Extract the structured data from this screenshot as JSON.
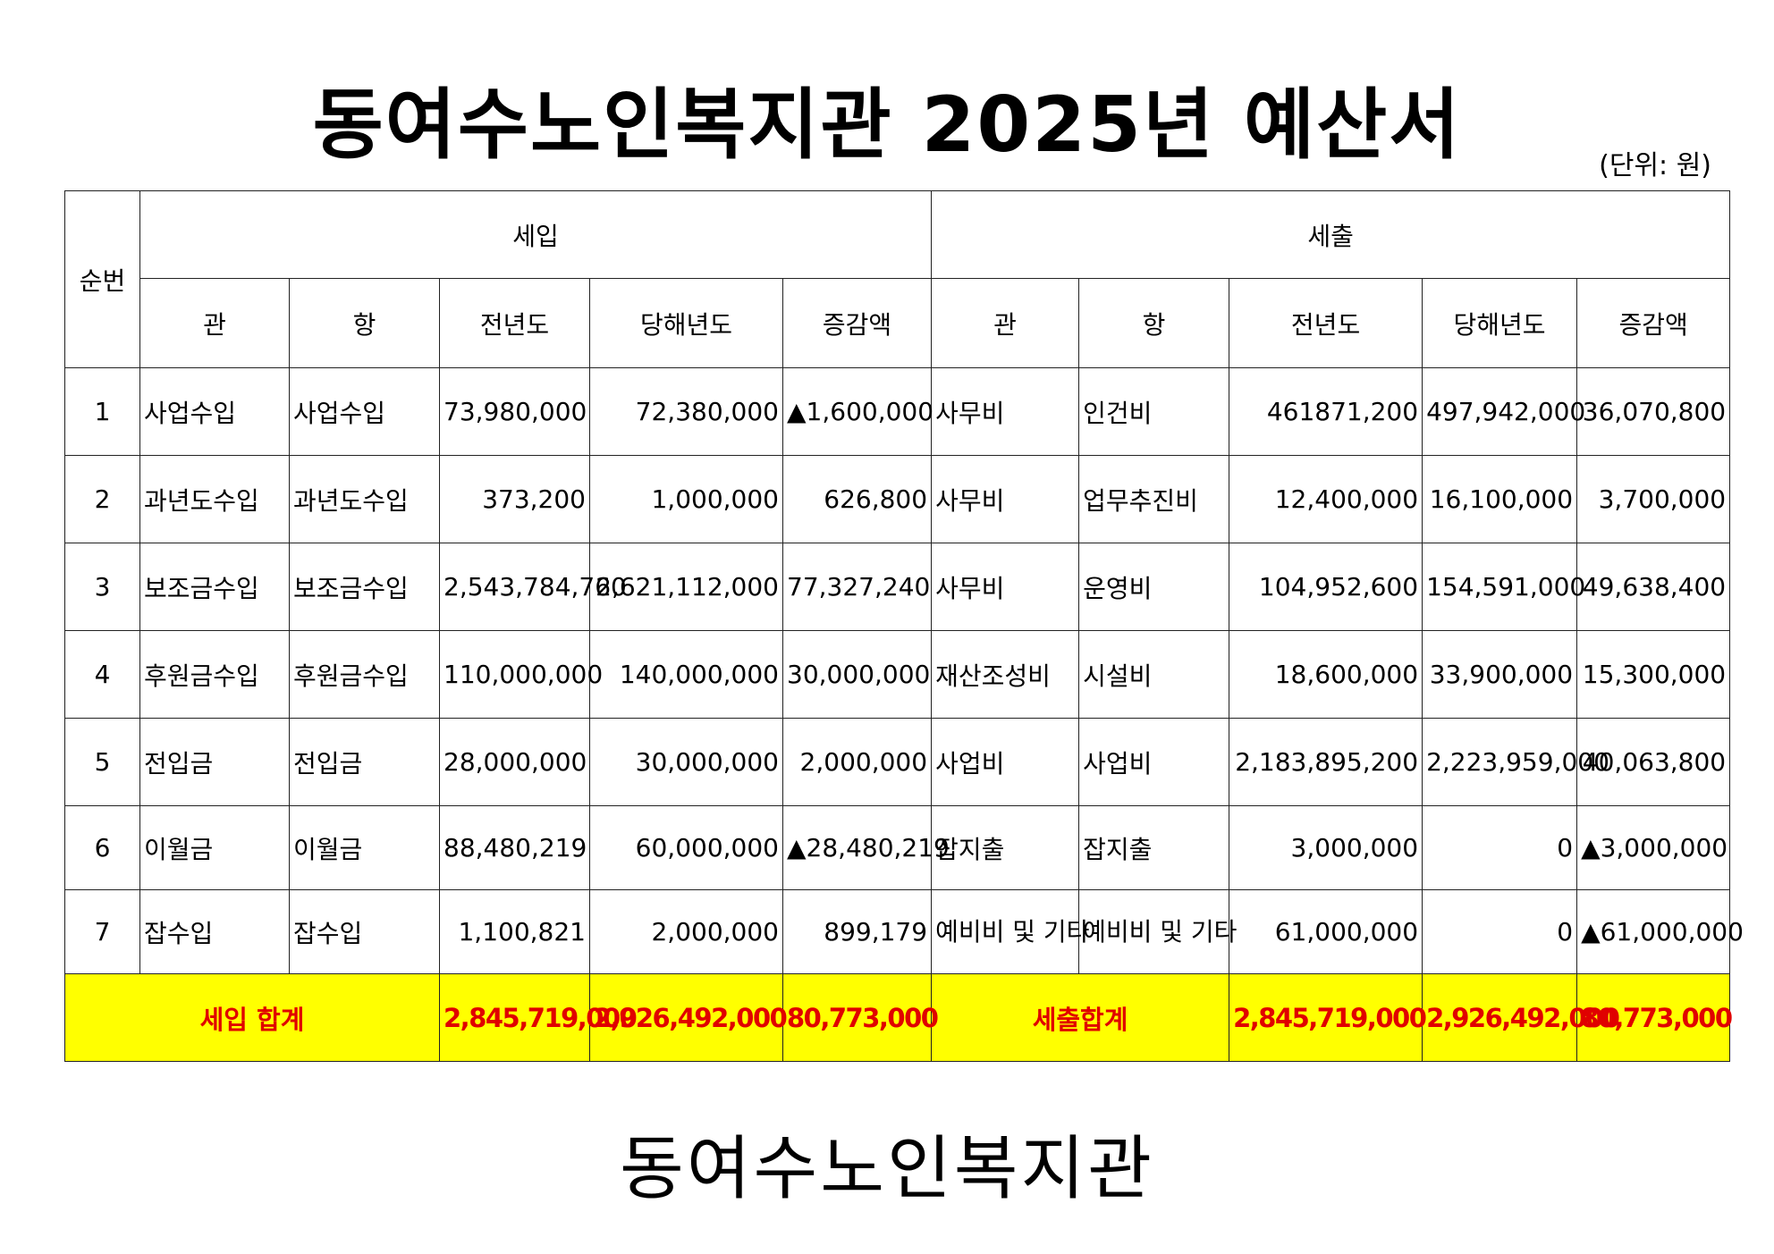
{
  "title": "동여수노인복지관 2025년 예산서",
  "unit": "(단위: 원)",
  "headers": {
    "seq": "순번",
    "revenue": "세입",
    "expense": "세출",
    "gwan": "관",
    "hang": "항",
    "prev": "전년도",
    "curr": "당해년도",
    "diff": "증감액"
  },
  "rows": [
    {
      "no": "1",
      "r_gwan": "사업수입",
      "r_hang": "사업수입",
      "r_prev": "73,980,000",
      "r_curr": "72,380,000",
      "r_diff": "▲1,600,000",
      "e_gwan": "사무비",
      "e_hang": "인건비",
      "e_prev": "461871,200",
      "e_curr": "497,942,000",
      "e_diff": "36,070,800"
    },
    {
      "no": "2",
      "r_gwan": "과년도수입",
      "r_hang": "과년도수입",
      "r_prev": "373,200",
      "r_curr": "1,000,000",
      "r_diff": "626,800",
      "e_gwan": "사무비",
      "e_hang": "업무추진비",
      "e_prev": "12,400,000",
      "e_curr": "16,100,000",
      "e_diff": "3,700,000"
    },
    {
      "no": "3",
      "r_gwan": "보조금수입",
      "r_hang": "보조금수입",
      "r_prev": "2,543,784,760",
      "r_curr": "2,621,112,000",
      "r_diff": "77,327,240",
      "e_gwan": "사무비",
      "e_hang": "운영비",
      "e_prev": "104,952,600",
      "e_curr": "154,591,000",
      "e_diff": "49,638,400"
    },
    {
      "no": "4",
      "r_gwan": "후원금수입",
      "r_hang": "후원금수입",
      "r_prev": "110,000,000",
      "r_curr": "140,000,000",
      "r_diff": "30,000,000",
      "e_gwan": "재산조성비",
      "e_hang": "시설비",
      "e_prev": "18,600,000",
      "e_curr": "33,900,000",
      "e_diff": "15,300,000"
    },
    {
      "no": "5",
      "r_gwan": "전입금",
      "r_hang": "전입금",
      "r_prev": "28,000,000",
      "r_curr": "30,000,000",
      "r_diff": "2,000,000",
      "e_gwan": "사업비",
      "e_hang": "사업비",
      "e_prev": "2,183,895,200",
      "e_curr": "2,223,959,000",
      "e_diff": "40,063,800"
    },
    {
      "no": "6",
      "r_gwan": "이월금",
      "r_hang": "이월금",
      "r_prev": "88,480,219",
      "r_curr": "60,000,000",
      "r_diff": "▲28,480,219",
      "e_gwan": "잡지출",
      "e_hang": "잡지출",
      "e_prev": "3,000,000",
      "e_curr": "0",
      "e_diff": "▲3,000,000"
    },
    {
      "no": "7",
      "r_gwan": "잡수입",
      "r_hang": "잡수입",
      "r_prev": "1,100,821",
      "r_curr": "2,000,000",
      "r_diff": "899,179",
      "e_gwan": "예비비 및 기타",
      "e_hang": "예비비 및 기타",
      "e_prev": "61,000,000",
      "e_curr": "0",
      "e_diff": "▲61,000,000"
    }
  ],
  "totals": {
    "revenue_label": "세입 합계",
    "r_prev": "2,845,719,000",
    "r_curr": "2,926,492,000",
    "r_diff": "80,773,000",
    "expense_label": "세출합계",
    "e_prev": "2,845,719,000",
    "e_curr": "2,926,492,000",
    "e_diff": "80,773,000"
  },
  "footer": "동여수노인복지관",
  "colors": {
    "total_bg": "#ffff00",
    "total_text": "#e00000"
  }
}
